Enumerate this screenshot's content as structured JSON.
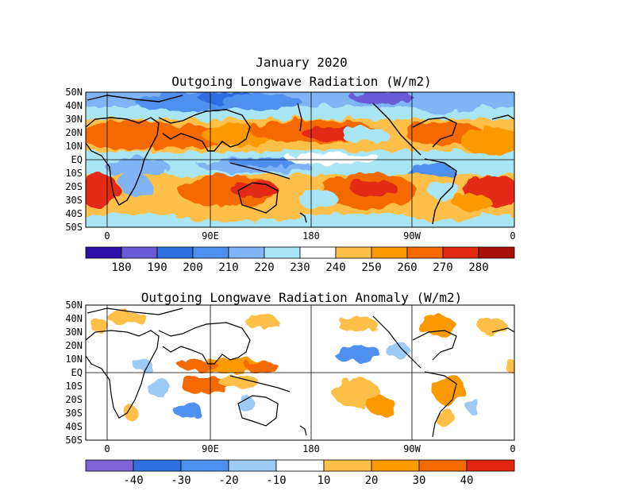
{
  "title": "January 2020",
  "map1": {
    "title": "Outgoing Longwave Radiation (W/m2)",
    "lat_labels": [
      "50N",
      "40N",
      "30N",
      "20N",
      "10N",
      "EQ",
      "10S",
      "20S",
      "30S",
      "40S",
      "50S"
    ],
    "lon_labels": [
      "0",
      "90E",
      "180",
      "90W",
      "0"
    ],
    "colorbar": {
      "labels": [
        "180",
        "190",
        "200",
        "210",
        "220",
        "230",
        "240",
        "250",
        "260",
        "270",
        "280"
      ],
      "colors": [
        "#2b0fa6",
        "#6a5ad5",
        "#2d6ee0",
        "#4f90ef",
        "#7fb4f5",
        "#a8e6f5",
        "#ffffff",
        "#ffc04a",
        "#fb9a00",
        "#f46a00",
        "#e22a12",
        "#a8100a"
      ]
    }
  },
  "map2": {
    "title": "Outgoing Longwave Radiation Anomaly (W/m2)",
    "lat_labels": [
      "50N",
      "40N",
      "30N",
      "20N",
      "10N",
      "EQ",
      "10S",
      "20S",
      "30S",
      "40S",
      "50S"
    ],
    "lon_labels": [
      "0",
      "90E",
      "180",
      "90W",
      "0"
    ],
    "colorbar": {
      "labels": [
        "-40",
        "-30",
        "-20",
        "-10",
        "10",
        "20",
        "30",
        "40"
      ],
      "colors": [
        "#7d63d8",
        "#2d6ee0",
        "#4f90ef",
        "#9ccbf5",
        "#ffffff",
        "#ffc04a",
        "#fb9a00",
        "#f46a00",
        "#e2260f"
      ]
    }
  }
}
